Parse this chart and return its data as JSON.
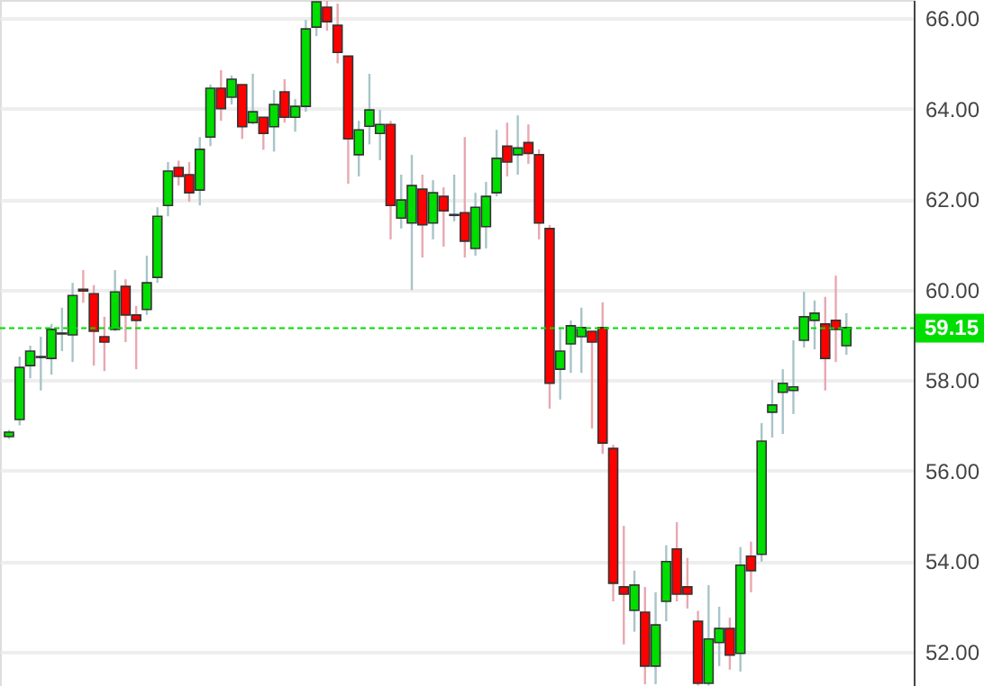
{
  "chart_data": {
    "type": "candlestick",
    "categories": [
      null,
      null,
      null,
      null,
      null,
      null,
      null,
      null,
      null,
      null,
      null,
      null,
      null,
      null,
      null,
      null,
      null,
      null,
      null,
      null,
      null,
      null,
      null,
      null,
      null,
      null,
      null,
      null,
      null,
      null,
      null,
      null,
      null,
      null,
      null,
      null,
      null,
      null,
      null,
      null,
      null,
      null,
      null,
      null,
      null,
      null,
      null,
      null,
      null,
      null,
      null,
      null,
      null,
      null,
      null,
      null,
      null,
      null,
      null,
      null,
      null,
      null,
      null,
      null,
      null,
      null,
      null,
      null,
      null,
      null,
      null,
      null,
      null,
      null,
      null,
      null,
      null,
      null,
      null,
      null
    ],
    "ohlc": [
      [
        56.75,
        56.9,
        56.7,
        56.85
      ],
      [
        57.13,
        58.52,
        57.0,
        58.28
      ],
      [
        58.32,
        58.76,
        58.04,
        58.64
      ],
      [
        58.5,
        58.96,
        57.77,
        58.52
      ],
      [
        58.48,
        59.24,
        58.12,
        59.12
      ],
      [
        59.02,
        59.6,
        58.64,
        59.04
      ],
      [
        59.0,
        60.15,
        58.4,
        59.87
      ],
      [
        60.01,
        60.43,
        59.71,
        59.97
      ],
      [
        59.91,
        60.1,
        58.32,
        59.08
      ],
      [
        58.96,
        59.4,
        58.2,
        58.84
      ],
      [
        59.12,
        60.43,
        59.08,
        59.95
      ],
      [
        60.07,
        60.23,
        58.84,
        59.44
      ],
      [
        59.44,
        59.64,
        58.24,
        59.32
      ],
      [
        59.56,
        60.75,
        59.44,
        60.15
      ],
      [
        60.27,
        61.82,
        60.15,
        61.62
      ],
      [
        61.86,
        62.82,
        61.62,
        62.62
      ],
      [
        62.7,
        62.85,
        62.3,
        62.5
      ],
      [
        62.54,
        62.82,
        61.94,
        62.14
      ],
      [
        62.2,
        63.37,
        61.86,
        63.1
      ],
      [
        63.37,
        64.53,
        63.17,
        64.45
      ],
      [
        64.45,
        64.85,
        63.73,
        64.0
      ],
      [
        64.25,
        64.73,
        64.09,
        64.65
      ],
      [
        64.53,
        64.53,
        63.33,
        63.6
      ],
      [
        63.69,
        64.77,
        63.65,
        63.93
      ],
      [
        63.81,
        63.81,
        63.09,
        63.45
      ],
      [
        63.6,
        64.41,
        63.05,
        64.09
      ],
      [
        64.37,
        64.65,
        63.69,
        63.81
      ],
      [
        63.81,
        64.21,
        63.49,
        64.05
      ],
      [
        64.05,
        65.96,
        63.93,
        65.76
      ],
      [
        65.8,
        66.38,
        65.6,
        66.36
      ],
      [
        66.24,
        66.38,
        65.72,
        65.92
      ],
      [
        65.84,
        66.32,
        65.0,
        65.24
      ],
      [
        65.16,
        65.16,
        62.34,
        63.33
      ],
      [
        62.98,
        63.73,
        62.5,
        63.53
      ],
      [
        63.61,
        64.77,
        63.21,
        63.97
      ],
      [
        63.45,
        63.97,
        62.86,
        63.65
      ],
      [
        63.65,
        63.73,
        61.11,
        61.86
      ],
      [
        61.58,
        62.54,
        61.35,
        61.98
      ],
      [
        61.47,
        62.98,
        59.99,
        62.3
      ],
      [
        62.22,
        62.54,
        60.71,
        61.43
      ],
      [
        61.47,
        62.42,
        61.11,
        62.14
      ],
      [
        62.06,
        62.26,
        60.95,
        61.74
      ],
      [
        61.64,
        62.54,
        61.51,
        61.66
      ],
      [
        61.7,
        63.37,
        60.71,
        61.07
      ],
      [
        60.91,
        62.14,
        60.75,
        61.82
      ],
      [
        61.39,
        62.38,
        60.91,
        62.06
      ],
      [
        62.14,
        63.53,
        62.06,
        62.9
      ],
      [
        63.17,
        63.69,
        62.5,
        62.82
      ],
      [
        62.98,
        63.85,
        62.54,
        63.13
      ],
      [
        63.25,
        63.65,
        62.78,
        63.01
      ],
      [
        62.98,
        63.1,
        61.11,
        61.47
      ],
      [
        61.35,
        61.43,
        57.37,
        57.93
      ],
      [
        58.24,
        59.16,
        57.57,
        58.64
      ],
      [
        58.8,
        59.32,
        58.16,
        59.2
      ],
      [
        58.96,
        59.6,
        58.16,
        59.16
      ],
      [
        59.08,
        59.08,
        56.93,
        58.84
      ],
      [
        59.16,
        59.72,
        56.37,
        56.61
      ],
      [
        56.49,
        56.57,
        53.11,
        53.51
      ],
      [
        53.43,
        54.78,
        52.16,
        53.27
      ],
      [
        52.91,
        53.79,
        52.44,
        53.47
      ],
      [
        52.87,
        53.43,
        51.28,
        51.68
      ],
      [
        51.68,
        53.31,
        51.28,
        52.59
      ],
      [
        53.11,
        54.35,
        52.67,
        53.99
      ],
      [
        54.27,
        54.86,
        53.11,
        53.27
      ],
      [
        53.43,
        54.07,
        52.95,
        53.27
      ],
      [
        52.67,
        52.9,
        51.25,
        51.3
      ],
      [
        51.3,
        53.47,
        51.25,
        52.28
      ],
      [
        52.2,
        52.99,
        51.68,
        52.51
      ],
      [
        52.51,
        52.75,
        51.6,
        51.92
      ],
      [
        51.96,
        54.31,
        51.56,
        53.91
      ],
      [
        54.11,
        54.43,
        53.31,
        53.79
      ],
      [
        54.15,
        57.05,
        53.99,
        56.65
      ],
      [
        57.29,
        58.0,
        56.73,
        57.45
      ],
      [
        57.73,
        58.24,
        56.81,
        57.93
      ],
      [
        57.77,
        58.88,
        57.25,
        57.85
      ],
      [
        58.88,
        59.95,
        58.72,
        59.4
      ],
      [
        59.32,
        59.76,
        58.68,
        59.48
      ],
      [
        59.24,
        59.84,
        57.77,
        58.48
      ],
      [
        59.32,
        60.31,
        58.4,
        59.12
      ],
      [
        58.76,
        59.48,
        58.56,
        59.16
      ]
    ],
    "ylim": [
      51.24,
      66.4
    ],
    "yticks": [
      {
        "value": 52,
        "label": "52.00"
      },
      {
        "value": 54,
        "label": "54.00"
      },
      {
        "value": 56,
        "label": "56.00"
      },
      {
        "value": 58,
        "label": "58.00"
      },
      {
        "value": 60,
        "label": "60.00"
      },
      {
        "value": 62,
        "label": "62.00"
      },
      {
        "value": 64,
        "label": "64.00"
      },
      {
        "value": 66,
        "label": "66.00"
      }
    ],
    "ref_lines": [
      {
        "axis": "y",
        "value": 59.15,
        "label": "59.15",
        "color": "#00dd00",
        "line_style": "dashed"
      }
    ],
    "grid": "y",
    "tick_labels": "y"
  }
}
